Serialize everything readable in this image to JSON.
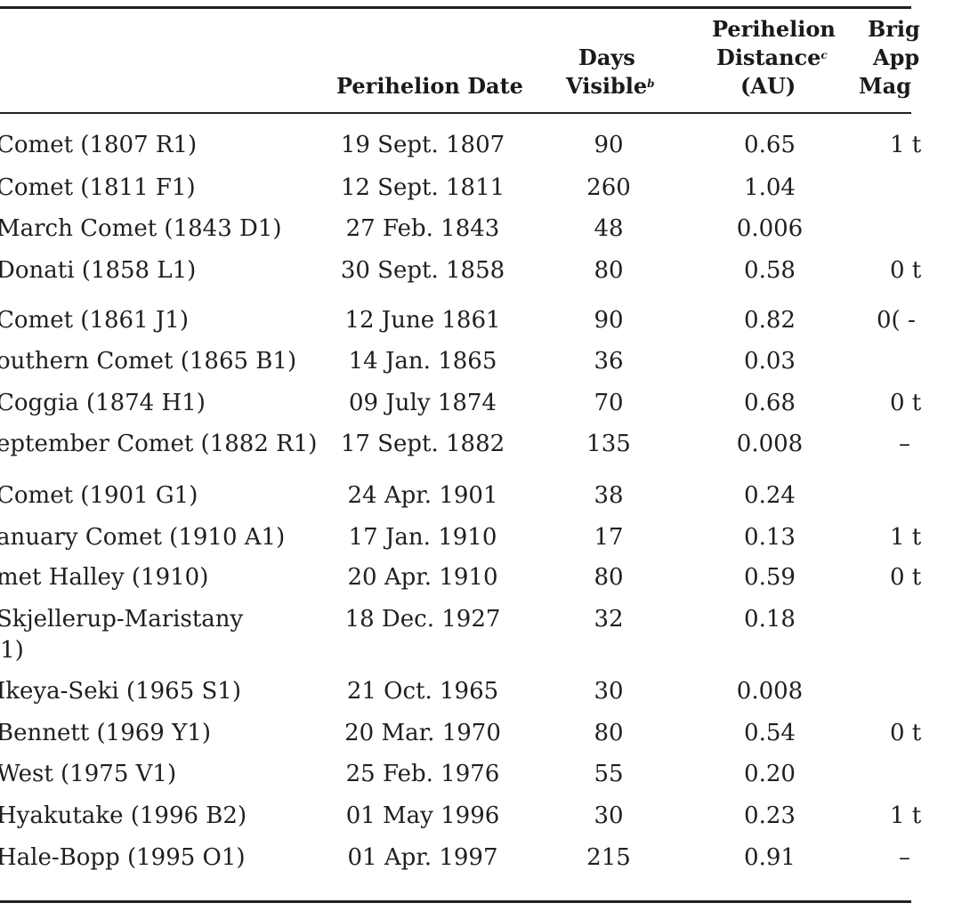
{
  "headers": {
    "date": "Perihelion Date",
    "days_line1": "Days",
    "days_line2": "Visible",
    "days_note": "b",
    "dist_line1": "Perihelion",
    "dist_line2": "Distance",
    "dist_note": "c",
    "dist_line3": "(AU)",
    "mag_line1": "Brig",
    "mag_line2": "App",
    "mag_line3": "Mag"
  },
  "rows": [
    {
      "name": "Comet (1807 R1)",
      "date": "19 Sept. 1807",
      "days": "90",
      "dist": "0.65",
      "mag": "1 t"
    },
    {
      "name": "Comet (1811 F1)",
      "date": "12 Sept. 1811",
      "days": "260",
      "dist": "1.04",
      "mag": ""
    },
    {
      "name": "March Comet (1843 D1)",
      "date": "27 Feb. 1843",
      "days": "48",
      "dist": "0.006",
      "mag": ""
    },
    {
      "name": "Donati (1858 L1)",
      "date": "30 Sept. 1858",
      "days": "80",
      "dist": "0.58",
      "mag": "0 t"
    },
    {
      "name": "Comet (1861 J1)",
      "date": "12 June 1861",
      "days": "90",
      "dist": "0.82",
      "mag": "0( -"
    },
    {
      "name": "outhern Comet (1865 B1)",
      "date": "14 Jan. 1865",
      "days": "36",
      "dist": "0.03",
      "mag": ""
    },
    {
      "name": "Coggia (1874 H1)",
      "date": "09 July 1874",
      "days": "70",
      "dist": "0.68",
      "mag": "0 t"
    },
    {
      "name": "eptember Comet (1882 R1)",
      "date": "17 Sept. 1882",
      "days": "135",
      "dist": "0.008",
      "mag": "–"
    },
    {
      "name": "Comet (1901 G1)",
      "date": "24 Apr. 1901",
      "days": "38",
      "dist": "0.24",
      "mag": ""
    },
    {
      "name": "anuary Comet (1910 A1)",
      "date": "17 Jan. 1910",
      "days": "17",
      "dist": "0.13",
      "mag": "1 t"
    },
    {
      "name": "met Halley (1910)",
      "date": "20 Apr. 1910",
      "days": "80",
      "dist": "0.59",
      "mag": "0 t"
    },
    {
      "name": "Skjellerup-Maristany",
      "name2": "(1)",
      "date": "18 Dec. 1927",
      "days": "32",
      "dist": "0.18",
      "mag": ""
    },
    {
      "name": "Ikeya-Seki (1965 S1)",
      "date": "21 Oct. 1965",
      "days": "30",
      "dist": "0.008",
      "mag": ""
    },
    {
      "name": "Bennett (1969 Y1)",
      "date": "20 Mar. 1970",
      "days": "80",
      "dist": "0.54",
      "mag": "0 t"
    },
    {
      "name": "West (1975 V1)",
      "date": "25 Feb. 1976",
      "days": "55",
      "dist": "0.20",
      "mag": ""
    },
    {
      "name": "Hyakutake (1996 B2)",
      "date": "01 May 1996",
      "days": "30",
      "dist": "0.23",
      "mag": "1 t"
    },
    {
      "name": "Hale-Bopp (1995 O1)",
      "date": "01 Apr. 1997",
      "days": "215",
      "dist": "0.91",
      "mag": "–"
    }
  ]
}
